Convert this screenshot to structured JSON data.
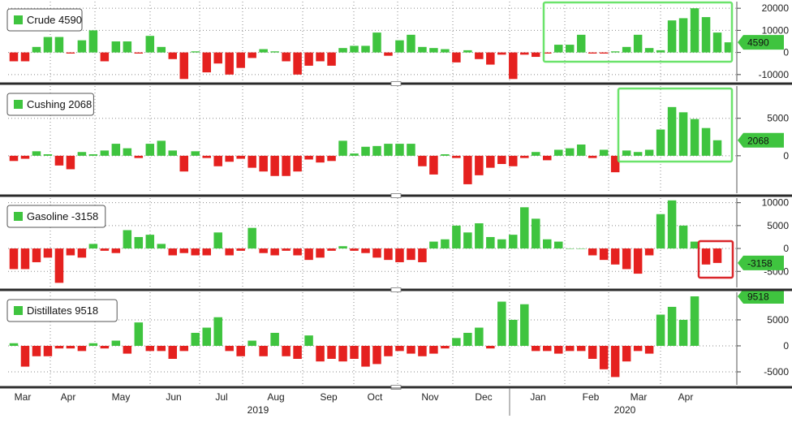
{
  "chart_data": {
    "type": "bar",
    "x_axis": {
      "months": [
        "Mar",
        "Apr",
        "May",
        "Jun",
        "Jul",
        "Aug",
        "Sep",
        "Oct",
        "Nov",
        "Dec",
        "Jan",
        "Feb",
        "Mar",
        "Apr"
      ],
      "years": [
        "2019",
        "2020"
      ]
    },
    "panels": [
      {
        "name": "Crude",
        "legend": "Crude 4590",
        "last_value_label": "4590",
        "ylim": [
          -13000,
          23000
        ],
        "yticks": [
          20000,
          10000,
          0,
          -10000
        ],
        "ytick_labels": [
          "20000",
          "10000",
          "0",
          "-10000"
        ],
        "highlight": "green",
        "values": [
          -4000,
          -4000,
          2500,
          7000,
          7000,
          -500,
          5500,
          10000,
          -4000,
          5000,
          5000,
          -500,
          7500,
          2500,
          -3000,
          -12000,
          500,
          -9000,
          -5000,
          -10000,
          -7000,
          -2500,
          1500,
          500,
          -4000,
          -10000,
          -6000,
          -4000,
          -6000,
          2000,
          3000,
          3000,
          9000,
          -1500,
          5500,
          8000,
          2500,
          2000,
          1500,
          -4500,
          1000,
          -3000,
          -5500,
          -1000,
          -12000,
          -1000,
          -2000,
          -500,
          3500,
          3500,
          8000,
          -500,
          -500,
          500,
          2500,
          8000,
          2000,
          1000,
          14500,
          15500,
          20000,
          16000,
          9000,
          4590
        ]
      },
      {
        "name": "Cushing",
        "legend": "Cushing 2068",
        "last_value_label": "2068",
        "ylim": [
          -5000,
          9300
        ],
        "yticks": [
          5000,
          0
        ],
        "ytick_labels": [
          "5000",
          "0"
        ],
        "highlight": "green",
        "values": [
          -700,
          -400,
          600,
          200,
          -1300,
          -1800,
          500,
          200,
          700,
          1600,
          1000,
          -300,
          1600,
          2000,
          700,
          -2100,
          600,
          -300,
          -1400,
          -800,
          -400,
          -1600,
          -2100,
          -2700,
          -2700,
          -2100,
          -500,
          -900,
          -700,
          2000,
          300,
          1200,
          1300,
          1600,
          1600,
          1600,
          -1400,
          -2500,
          200,
          -300,
          -3800,
          -2600,
          -1600,
          -1100,
          -1400,
          -300,
          500,
          -600,
          800,
          1000,
          1500,
          -300,
          800,
          -2200,
          700,
          500,
          800,
          3500,
          6500,
          5800,
          4900,
          3700,
          2068
        ]
      },
      {
        "name": "Gasoline",
        "legend": "Gasoline -3158",
        "last_value_label": "-3158",
        "ylim": [
          -8500,
          11000
        ],
        "yticks": [
          10000,
          5000,
          0,
          -5000
        ],
        "ytick_labels": [
          "10000",
          "5000",
          "0",
          "-5000"
        ],
        "highlight": "red",
        "values": [
          -4500,
          -4500,
          -3000,
          -2000,
          -7500,
          -1500,
          -2000,
          1000,
          -500,
          -1000,
          4000,
          2500,
          3000,
          1000,
          -1500,
          -1000,
          -1500,
          -1500,
          3500,
          -1500,
          -500,
          4500,
          -1000,
          -1500,
          -500,
          -1500,
          -2500,
          -2000,
          -500,
          500,
          -500,
          -1000,
          -2000,
          -2500,
          -3000,
          -2500,
          -3000,
          1500,
          2000,
          5000,
          3500,
          5500,
          2500,
          2000,
          3000,
          9000,
          6500,
          2000,
          1500,
          0,
          0,
          -1500,
          -2500,
          -3500,
          -4500,
          -5500,
          -1500,
          7500,
          10500,
          5000,
          1500,
          -3500,
          -3158
        ]
      },
      {
        "name": "Distillates",
        "legend": "Distillates 9518",
        "last_value_label": "9518",
        "ylim": [
          -7500,
          10300
        ],
        "yticks": [
          5000,
          0,
          -5000
        ],
        "ytick_labels": [
          "5000",
          "0",
          "-5000"
        ],
        "highlight": "none",
        "values": [
          500,
          -4000,
          -2000,
          -2000,
          -500,
          -500,
          -1000,
          500,
          -500,
          1000,
          -1500,
          4500,
          -1000,
          -1000,
          -2500,
          -1000,
          2500,
          3500,
          5500,
          -1000,
          -2000,
          1000,
          -2000,
          2500,
          -2000,
          -2500,
          2000,
          -3000,
          -2500,
          -3000,
          -2500,
          -4000,
          -3500,
          -2000,
          -1000,
          -1500,
          -2000,
          -1500,
          -500,
          1500,
          2500,
          3500,
          -500,
          8500,
          5000,
          8000,
          -1000,
          -1000,
          -1500,
          -1000,
          -1000,
          -2500,
          -4500,
          -6000,
          -3000,
          -1000,
          -1500,
          6000,
          7500,
          5000,
          9518
        ]
      }
    ],
    "colors": {
      "positive": "#3fc43f",
      "negative": "#e5211f",
      "highlight_green": "#6be36b",
      "highlight_red": "#d9262a",
      "value_box": "#3fc43f",
      "grid": "#8a8a8a",
      "separator": "#2a2a2a"
    },
    "grid": true,
    "legend_placement": "top-left"
  }
}
